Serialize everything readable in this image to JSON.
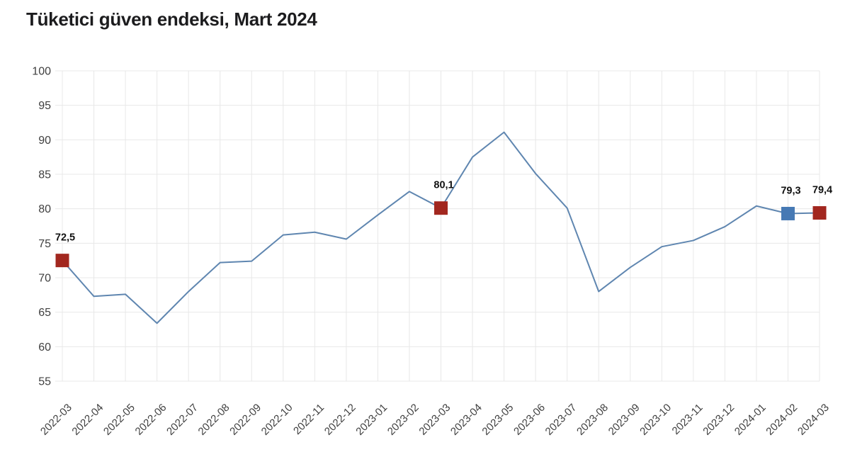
{
  "page": {
    "background": "#ffffff"
  },
  "chart_data": {
    "type": "line",
    "title": "Tüketici güven endeksi, Mart 2024",
    "x": [
      "2022-03",
      "2022-04",
      "2022-05",
      "2022-06",
      "2022-07",
      "2022-08",
      "2022-09",
      "2022-10",
      "2022-11",
      "2022-12",
      "2023-01",
      "2023-02",
      "2023-03",
      "2023-04",
      "2023-05",
      "2023-06",
      "2023-07",
      "2023-08",
      "2023-09",
      "2023-10",
      "2023-11",
      "2023-12",
      "2024-01",
      "2024-02",
      "2024-03"
    ],
    "values": [
      72.5,
      67.3,
      67.6,
      63.4,
      68.0,
      72.2,
      72.4,
      76.2,
      76.6,
      75.6,
      79.1,
      82.5,
      80.1,
      87.5,
      91.1,
      85.1,
      80.1,
      68.0,
      71.5,
      74.5,
      75.4,
      77.4,
      80.4,
      79.3,
      79.4
    ],
    "ylim": [
      55,
      100
    ],
    "yticks": [
      100,
      95,
      90,
      85,
      80,
      75,
      70,
      65,
      60,
      55
    ],
    "grid": "both",
    "legend": "none",
    "decimal_separator": ",",
    "colors": {
      "line": "#5f86b0",
      "grid": "#e8e8e8",
      "title": "#1c1c1e",
      "tick": "#3f3f3f",
      "data_label": "#111111",
      "marker_red": "#a2271f",
      "marker_blue": "#4679b4"
    },
    "marked_points": [
      {
        "x": "2022-03",
        "value": 72.5,
        "label": "72,5",
        "color": "#a2271f"
      },
      {
        "x": "2023-03",
        "value": 80.1,
        "label": "80,1",
        "color": "#a2271f"
      },
      {
        "x": "2024-02",
        "value": 79.3,
        "label": "79,3",
        "color": "#4679b4"
      },
      {
        "x": "2024-03",
        "value": 79.4,
        "label": "79,4",
        "color": "#a2271f"
      }
    ]
  }
}
